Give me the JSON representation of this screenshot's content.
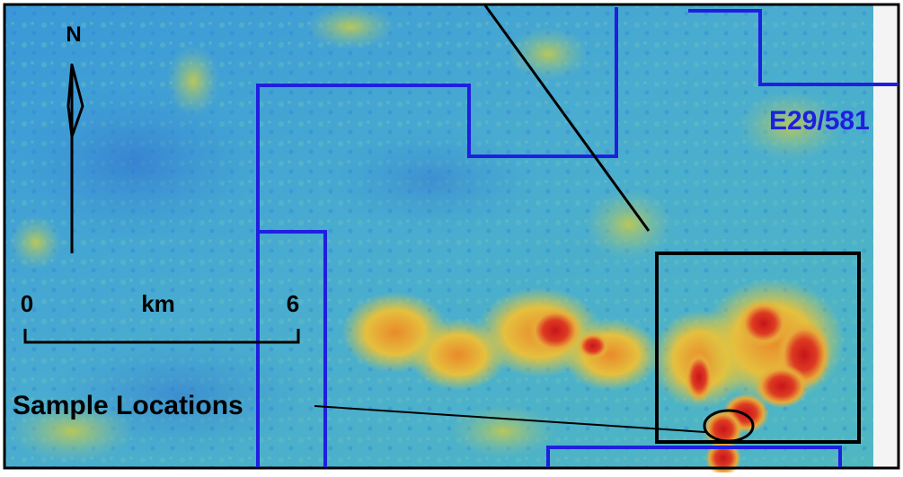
{
  "map": {
    "north_label": "N",
    "scale": {
      "start_label": "0",
      "unit_label": "km",
      "end_label": "6"
    },
    "tenement_label": "E29/581",
    "annotation_label": "Sample Locations",
    "colors": {
      "background_low": "#3a9bd6",
      "background_mid": "#4fb3c8",
      "anomaly_mid": "#e0b23a",
      "anomaly_high": "#d8261c",
      "tenement_boundary": "#1f1fe0",
      "inset_box": "#000000",
      "leader_line": "#000000"
    }
  }
}
